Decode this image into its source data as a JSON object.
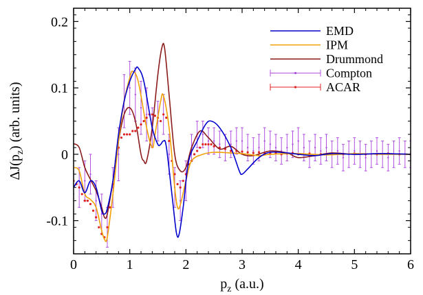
{
  "chart_data": {
    "type": "line",
    "title": "",
    "xlabel": {
      "base": "p",
      "sub": "z",
      "rest": " (a.u.)"
    },
    "ylabel": {
      "pre": "ΔJ(p",
      "sub": "z",
      "post": ") (arb. units)"
    },
    "xlim": [
      0,
      6
    ],
    "ylim": [
      -0.15,
      0.22
    ],
    "x_ticks": [
      0,
      1,
      2,
      3,
      4,
      5,
      6
    ],
    "x_tick_labels": [
      "0",
      "1",
      "2",
      "3",
      "4",
      "5",
      "6"
    ],
    "y_ticks": [
      -0.1,
      0,
      0.1,
      0.2
    ],
    "y_tick_labels": [
      "-0.1",
      "0",
      "0.1",
      "0.2"
    ],
    "grid": false,
    "legend_position": "top-right",
    "series": [
      {
        "name": "EMD",
        "kind": "line",
        "color": "#0000cc",
        "points": [
          [
            0,
            -0.05
          ],
          [
            0.1,
            -0.04
          ],
          [
            0.2,
            -0.058
          ],
          [
            0.3,
            -0.04
          ],
          [
            0.4,
            -0.05
          ],
          [
            0.5,
            -0.085
          ],
          [
            0.55,
            -0.09
          ],
          [
            0.6,
            -0.082
          ],
          [
            0.7,
            -0.04
          ],
          [
            0.8,
            0.03
          ],
          [
            0.9,
            0.08
          ],
          [
            1.0,
            0.11
          ],
          [
            1.1,
            0.128
          ],
          [
            1.15,
            0.13
          ],
          [
            1.25,
            0.11
          ],
          [
            1.4,
            0.04
          ],
          [
            1.5,
            0.015
          ],
          [
            1.55,
            0.015
          ],
          [
            1.6,
            0.02
          ],
          [
            1.65,
            0.012
          ],
          [
            1.75,
            -0.06
          ],
          [
            1.83,
            -0.118
          ],
          [
            1.88,
            -0.12
          ],
          [
            1.95,
            -0.08
          ],
          [
            2.05,
            -0.01
          ],
          [
            2.2,
            0.02
          ],
          [
            2.35,
            0.045
          ],
          [
            2.45,
            0.05
          ],
          [
            2.6,
            0.04
          ],
          [
            2.8,
            0.01
          ],
          [
            2.95,
            -0.025
          ],
          [
            3.0,
            -0.03
          ],
          [
            3.1,
            -0.022
          ],
          [
            3.3,
            -0.005
          ],
          [
            3.5,
            0.003
          ],
          [
            3.8,
            0.002
          ],
          [
            4.0,
            0.0
          ],
          [
            4.3,
            -0.002
          ],
          [
            4.6,
            0.001
          ],
          [
            5.0,
            0.0
          ],
          [
            5.5,
            0.001
          ],
          [
            6.0,
            0.0
          ]
        ]
      },
      {
        "name": "IPM",
        "kind": "line",
        "color": "#f0a000",
        "points": [
          [
            0,
            -0.02
          ],
          [
            0.1,
            -0.025
          ],
          [
            0.2,
            -0.06
          ],
          [
            0.3,
            -0.068
          ],
          [
            0.4,
            -0.08
          ],
          [
            0.5,
            -0.115
          ],
          [
            0.55,
            -0.128
          ],
          [
            0.6,
            -0.125
          ],
          [
            0.7,
            -0.06
          ],
          [
            0.8,
            0.02
          ],
          [
            0.9,
            0.08
          ],
          [
            1.0,
            0.115
          ],
          [
            1.05,
            0.125
          ],
          [
            1.15,
            0.11
          ],
          [
            1.3,
            0.04
          ],
          [
            1.4,
            0.01
          ],
          [
            1.45,
            0.03
          ],
          [
            1.55,
            0.08
          ],
          [
            1.6,
            0.088
          ],
          [
            1.7,
            0.04
          ],
          [
            1.8,
            -0.05
          ],
          [
            1.85,
            -0.08
          ],
          [
            1.9,
            -0.076
          ],
          [
            2.0,
            -0.04
          ],
          [
            2.1,
            -0.01
          ],
          [
            2.3,
            0.0
          ],
          [
            2.5,
            0.003
          ],
          [
            2.8,
            0.002
          ],
          [
            3.0,
            0.001
          ],
          [
            3.3,
            -0.002
          ],
          [
            3.5,
            0.0
          ],
          [
            4.0,
            0.001
          ],
          [
            4.5,
            -0.001
          ],
          [
            5.0,
            0.001
          ],
          [
            5.5,
            0.0
          ],
          [
            6.0,
            0.0
          ]
        ]
      },
      {
        "name": "Drummond",
        "kind": "line",
        "color": "#8b1a1a",
        "points": [
          [
            0,
            0.016
          ],
          [
            0.1,
            0.01
          ],
          [
            0.2,
            -0.02
          ],
          [
            0.3,
            -0.038
          ],
          [
            0.4,
            -0.055
          ],
          [
            0.5,
            -0.08
          ],
          [
            0.55,
            -0.095
          ],
          [
            0.6,
            -0.09
          ],
          [
            0.7,
            -0.04
          ],
          [
            0.8,
            0.02
          ],
          [
            0.9,
            0.06
          ],
          [
            1.0,
            0.07
          ],
          [
            1.1,
            0.05
          ],
          [
            1.2,
            0.0
          ],
          [
            1.25,
            -0.01
          ],
          [
            1.3,
            -0.01
          ],
          [
            1.4,
            0.04
          ],
          [
            1.5,
            0.12
          ],
          [
            1.57,
            0.16
          ],
          [
            1.62,
            0.16
          ],
          [
            1.7,
            0.09
          ],
          [
            1.8,
            0.0
          ],
          [
            1.9,
            -0.025
          ],
          [
            2.0,
            -0.02
          ],
          [
            2.1,
            0.01
          ],
          [
            2.25,
            0.035
          ],
          [
            2.4,
            0.025
          ],
          [
            2.6,
            0.008
          ],
          [
            2.8,
            0.012
          ],
          [
            3.0,
            0.0
          ],
          [
            3.2,
            -0.002
          ],
          [
            3.5,
            0.005
          ],
          [
            3.8,
            0.002
          ],
          [
            4.0,
            -0.005
          ],
          [
            4.3,
            -0.002
          ],
          [
            4.6,
            0.002
          ],
          [
            5.0,
            0.0
          ],
          [
            5.5,
            0.001
          ],
          [
            6.0,
            0.0
          ]
        ]
      },
      {
        "name": "Compton",
        "kind": "errorbar",
        "color": "#b050e0",
        "x": [
          0.0,
          0.1,
          0.2,
          0.3,
          0.4,
          0.5,
          0.6,
          0.7,
          0.8,
          0.9,
          1.0,
          1.1,
          1.2,
          1.3,
          1.4,
          1.5,
          1.6,
          1.7,
          1.8,
          1.9,
          2.0,
          2.1,
          2.2,
          2.3,
          2.4,
          2.5,
          2.6,
          2.7,
          2.8,
          2.9,
          3.0,
          3.1,
          3.2,
          3.3,
          3.4,
          3.5,
          3.6,
          3.7,
          3.8,
          3.9,
          4.0,
          4.1,
          4.2,
          4.3,
          4.4,
          4.5,
          4.6,
          4.7,
          4.8,
          4.9,
          5.0,
          5.1,
          5.2,
          5.3,
          5.4,
          5.5,
          5.6,
          5.7,
          5.8,
          5.9,
          6.0
        ],
        "y": [
          -0.06,
          -0.05,
          -0.04,
          -0.03,
          -0.07,
          -0.09,
          -0.11,
          -0.05,
          0.0,
          0.08,
          0.1,
          0.09,
          0.07,
          0.06,
          0.04,
          0.05,
          0.06,
          0.0,
          -0.05,
          -0.07,
          -0.04,
          0.01,
          0.03,
          0.03,
          0.02,
          0.02,
          0.015,
          0.01,
          0.015,
          0.02,
          0.02,
          0.01,
          0.005,
          0.01,
          0.02,
          0.015,
          0.01,
          0.005,
          0.01,
          0.015,
          0.02,
          0.01,
          0.0,
          0.01,
          0.005,
          0.01,
          0.0,
          0.005,
          -0.005,
          0.0,
          0.005,
          0.0,
          -0.005,
          0.0,
          0.005,
          0.0,
          -0.005,
          0.0,
          0.005,
          0.0,
          0.0
        ],
        "err": [
          0.03,
          0.03,
          0.03,
          0.03,
          0.03,
          0.03,
          0.03,
          0.03,
          0.04,
          0.04,
          0.04,
          0.04,
          0.04,
          0.04,
          0.03,
          0.03,
          0.03,
          0.03,
          0.03,
          0.03,
          0.03,
          0.02,
          0.02,
          0.02,
          0.02,
          0.02,
          0.02,
          0.02,
          0.02,
          0.02,
          0.02,
          0.02,
          0.02,
          0.02,
          0.02,
          0.02,
          0.02,
          0.02,
          0.02,
          0.02,
          0.02,
          0.02,
          0.02,
          0.02,
          0.02,
          0.02,
          0.02,
          0.02,
          0.02,
          0.02,
          0.02,
          0.02,
          0.02,
          0.02,
          0.02,
          0.02,
          0.02,
          0.02,
          0.02,
          0.02,
          0.02
        ]
      },
      {
        "name": "ACAR",
        "kind": "dots",
        "color": "#e02020",
        "x": [
          0.0,
          0.05,
          0.1,
          0.15,
          0.2,
          0.25,
          0.3,
          0.35,
          0.4,
          0.45,
          0.5,
          0.55,
          0.6,
          0.65,
          0.7,
          0.75,
          0.8,
          0.85,
          0.9,
          0.95,
          1.0,
          1.05,
          1.1,
          1.15,
          1.2,
          1.25,
          1.3,
          1.35,
          1.4,
          1.45,
          1.5,
          1.55,
          1.6,
          1.65,
          1.7,
          1.75,
          1.8,
          1.85,
          1.9,
          1.95,
          2.0,
          2.05,
          2.1,
          2.15,
          2.2,
          2.25,
          2.3,
          2.35,
          2.4,
          2.45,
          2.5,
          2.6,
          2.7,
          2.8,
          2.9,
          3.0,
          3.1,
          3.2,
          3.3,
          3.4,
          3.5,
          3.6,
          3.7,
          3.8,
          3.9,
          4.0,
          4.2,
          4.4,
          4.6,
          4.8,
          5.0,
          5.2,
          5.4,
          5.6,
          5.8,
          6.0
        ],
        "y": [
          -0.04,
          -0.045,
          -0.05,
          -0.06,
          -0.07,
          -0.07,
          -0.075,
          -0.085,
          -0.095,
          -0.11,
          -0.12,
          -0.125,
          -0.11,
          -0.08,
          -0.045,
          -0.01,
          0.01,
          0.025,
          0.03,
          0.03,
          0.03,
          0.035,
          0.035,
          0.04,
          0.045,
          0.05,
          0.055,
          0.06,
          0.06,
          0.058,
          0.055,
          0.05,
          0.06,
          0.055,
          0.02,
          -0.01,
          -0.03,
          -0.045,
          -0.05,
          -0.04,
          -0.03,
          -0.015,
          -0.01,
          0.0,
          0.005,
          0.01,
          0.015,
          0.015,
          0.015,
          0.015,
          0.012,
          0.01,
          0.008,
          0.005,
          0.005,
          0.004,
          0.003,
          0.002,
          0.003,
          0.002,
          0.001,
          0.002,
          0.0,
          0.001,
          0.002,
          0.0,
          0.001,
          0.0,
          0.001,
          0.0,
          0.001,
          0.0,
          0.0,
          0.001,
          0.0,
          0.0
        ]
      }
    ]
  }
}
